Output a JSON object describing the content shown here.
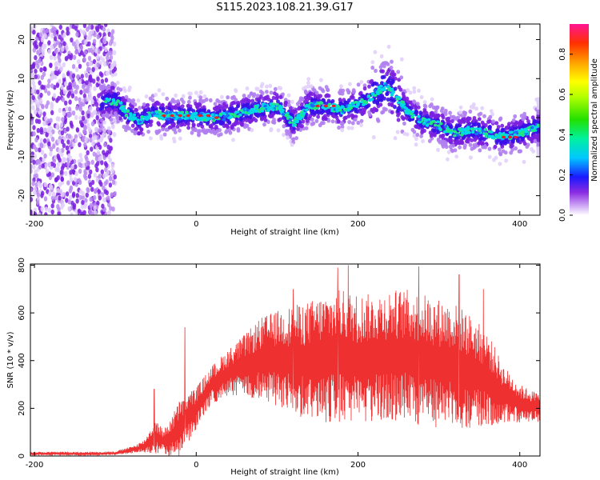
{
  "title": "S115.2023.108.21.39.G17",
  "colors": {
    "spectral_red": "#e82020",
    "snr_line": "#ef3030",
    "axis": "#000000"
  },
  "chart_data": [
    {
      "type": "heatmap",
      "xlabel": "Height of straight line (km)",
      "ylabel": "Frequency (Hz)",
      "xlim": [
        -205,
        425
      ],
      "ylim": [
        -25,
        24
      ],
      "xticks": [
        -200,
        0,
        200,
        400
      ],
      "yticks": [
        -20,
        -10,
        0,
        10,
        20
      ],
      "grid": false,
      "ridge": {
        "x": [
          -115,
          -100,
          -85,
          -70,
          -55,
          -40,
          -20,
          0,
          20,
          40,
          60,
          80,
          100,
          110,
          120,
          140,
          160,
          180,
          200,
          215,
          225,
          235,
          245,
          260,
          280,
          300,
          320,
          340,
          360,
          380,
          400,
          420
        ],
        "y": [
          4,
          4.5,
          1,
          -1,
          1,
          0.5,
          0.5,
          0.5,
          0,
          0.5,
          1.5,
          2.5,
          3,
          1,
          -1.5,
          3,
          3,
          2,
          3.5,
          5,
          7,
          8,
          6,
          2,
          -1,
          -2,
          -4,
          -3,
          -4,
          -5,
          -4,
          -2.5
        ]
      },
      "colorbar": {
        "label": "Normalized spectral amplitude",
        "ticks": [
          0.0,
          0.2,
          0.4,
          0.6,
          0.8
        ],
        "range": [
          0,
          0.95
        ]
      }
    },
    {
      "type": "line",
      "xlabel": "Height of straight line (km)",
      "ylabel": "SNR (10 * v/v)",
      "xlim": [
        -205,
        425
      ],
      "ylim": [
        0,
        805
      ],
      "xticks": [
        -200,
        0,
        200,
        400
      ],
      "yticks": [
        0,
        200,
        400,
        600,
        800
      ],
      "grid": false,
      "envelope": {
        "x": [
          -205,
          -120,
          -100,
          -80,
          -65,
          -50,
          -40,
          -30,
          -20,
          0,
          20,
          40,
          60,
          80,
          100,
          120,
          140,
          160,
          180,
          200,
          220,
          240,
          260,
          280,
          300,
          320,
          340,
          360,
          380,
          400,
          425
        ],
        "mean": [
          10,
          10,
          12,
          25,
          40,
          80,
          60,
          80,
          120,
          200,
          300,
          350,
          380,
          400,
          410,
          400,
          400,
          410,
          420,
          400,
          410,
          420,
          420,
          400,
          390,
          380,
          350,
          320,
          260,
          220,
          200
        ],
        "amp": [
          8,
          8,
          8,
          15,
          25,
          70,
          50,
          90,
          120,
          90,
          80,
          100,
          130,
          180,
          200,
          230,
          250,
          270,
          280,
          280,
          270,
          280,
          280,
          280,
          270,
          260,
          240,
          200,
          120,
          80,
          60
        ]
      },
      "peaks": [
        {
          "x": -52,
          "y": 280
        },
        {
          "x": -14,
          "y": 540
        },
        {
          "x": 120,
          "y": 700
        },
        {
          "x": 175,
          "y": 790
        },
        {
          "x": 188,
          "y": 800
        },
        {
          "x": 275,
          "y": 795
        },
        {
          "x": 325,
          "y": 760
        },
        {
          "x": 355,
          "y": 700
        }
      ]
    }
  ]
}
